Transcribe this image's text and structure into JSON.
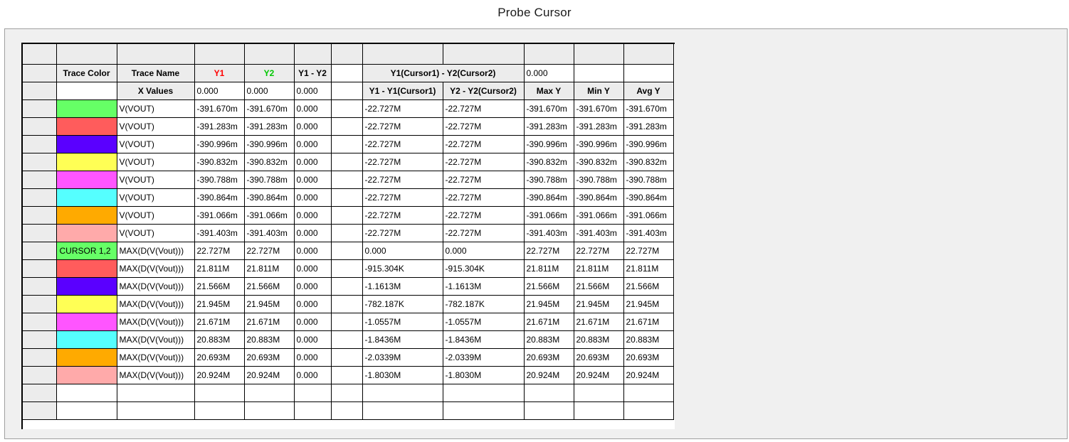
{
  "window": {
    "title": "Probe Cursor"
  },
  "header_row": {
    "trace_color": "Trace Color",
    "trace_name": "Trace Name",
    "y1": "Y1",
    "y2": "Y2",
    "y1_minus_y2": "Y1 - Y2",
    "diff_label": "Y1(Cursor1) - Y2(Cursor2)",
    "diff_value": "0.000"
  },
  "subheader_row": {
    "x_values": "X Values",
    "y1": "0.000",
    "y2": "0.000",
    "y1_minus_y2": "0.000",
    "col_y1_cursor": "Y1 - Y1(Cursor1)",
    "col_y2_cursor": "Y2 - Y2(Cursor2)",
    "max_y": "Max Y",
    "min_y": "Min Y",
    "avg_y": "Avg Y"
  },
  "colors": {
    "y1_header": "#ff0000",
    "y2_header": "#00c800",
    "cursor_cell": "#66ff66"
  },
  "rows": [
    {
      "color": "#66ff66",
      "label": "",
      "name": "V(VOUT)",
      "y1": "-391.670m",
      "y2": "-391.670m",
      "diff": "0.000",
      "y1c": "-22.727M",
      "y2c": "-22.727M",
      "max": "-391.670m",
      "min": "-391.670m",
      "avg": "-391.670m"
    },
    {
      "color": "#ff5c5c",
      "label": "",
      "name": "V(VOUT)",
      "y1": "-391.283m",
      "y2": "-391.283m",
      "diff": "0.000",
      "y1c": "-22.727M",
      "y2c": "-22.727M",
      "max": "-391.283m",
      "min": "-391.283m",
      "avg": "-391.283m"
    },
    {
      "color": "#5a00ff",
      "label": "",
      "name": "V(VOUT)",
      "y1": "-390.996m",
      "y2": "-390.996m",
      "diff": "0.000",
      "y1c": "-22.727M",
      "y2c": "-22.727M",
      "max": "-390.996m",
      "min": "-390.996m",
      "avg": "-390.996m"
    },
    {
      "color": "#ffff55",
      "label": "",
      "name": "V(VOUT)",
      "y1": "-390.832m",
      "y2": "-390.832m",
      "diff": "0.000",
      "y1c": "-22.727M",
      "y2c": "-22.727M",
      "max": "-390.832m",
      "min": "-390.832m",
      "avg": "-390.832m"
    },
    {
      "color": "#ff55ff",
      "label": "",
      "name": "V(VOUT)",
      "y1": "-390.788m",
      "y2": "-390.788m",
      "diff": "0.000",
      "y1c": "-22.727M",
      "y2c": "-22.727M",
      "max": "-390.788m",
      "min": "-390.788m",
      "avg": "-390.788m"
    },
    {
      "color": "#55ffff",
      "label": "",
      "name": "V(VOUT)",
      "y1": "-390.864m",
      "y2": "-390.864m",
      "diff": "0.000",
      "y1c": "-22.727M",
      "y2c": "-22.727M",
      "max": "-390.864m",
      "min": "-390.864m",
      "avg": "-390.864m"
    },
    {
      "color": "#ffaa00",
      "label": "",
      "name": "V(VOUT)",
      "y1": "-391.066m",
      "y2": "-391.066m",
      "diff": "0.000",
      "y1c": "-22.727M",
      "y2c": "-22.727M",
      "max": "-391.066m",
      "min": "-391.066m",
      "avg": "-391.066m"
    },
    {
      "color": "#ffaaaa",
      "label": "",
      "name": "V(VOUT)",
      "y1": "-391.403m",
      "y2": "-391.403m",
      "diff": "0.000",
      "y1c": "-22.727M",
      "y2c": "-22.727M",
      "max": "-391.403m",
      "min": "-391.403m",
      "avg": "-391.403m"
    },
    {
      "color": "#66ff66",
      "label": "CURSOR 1,2",
      "name": "MAX(D(V(Vout)))",
      "y1": "22.727M",
      "y2": "22.727M",
      "diff": "0.000",
      "y1c": "0.000",
      "y2c": "0.000",
      "max": "22.727M",
      "min": "22.727M",
      "avg": "22.727M"
    },
    {
      "color": "#ff5c5c",
      "label": "",
      "name": "MAX(D(V(Vout)))",
      "y1": "21.811M",
      "y2": "21.811M",
      "diff": "0.000",
      "y1c": "-915.304K",
      "y2c": "-915.304K",
      "max": "21.811M",
      "min": "21.811M",
      "avg": "21.811M"
    },
    {
      "color": "#5a00ff",
      "label": "",
      "name": "MAX(D(V(Vout)))",
      "y1": "21.566M",
      "y2": "21.566M",
      "diff": "0.000",
      "y1c": "-1.1613M",
      "y2c": "-1.1613M",
      "max": "21.566M",
      "min": "21.566M",
      "avg": "21.566M"
    },
    {
      "color": "#ffff55",
      "label": "",
      "name": "MAX(D(V(Vout)))",
      "y1": "21.945M",
      "y2": "21.945M",
      "diff": "0.000",
      "y1c": "-782.187K",
      "y2c": "-782.187K",
      "max": "21.945M",
      "min": "21.945M",
      "avg": "21.945M"
    },
    {
      "color": "#ff55ff",
      "label": "",
      "name": "MAX(D(V(Vout)))",
      "y1": "21.671M",
      "y2": "21.671M",
      "diff": "0.000",
      "y1c": "-1.0557M",
      "y2c": "-1.0557M",
      "max": "21.671M",
      "min": "21.671M",
      "avg": "21.671M"
    },
    {
      "color": "#55ffff",
      "label": "",
      "name": "MAX(D(V(Vout)))",
      "y1": "20.883M",
      "y2": "20.883M",
      "diff": "0.000",
      "y1c": "-1.8436M",
      "y2c": "-1.8436M",
      "max": "20.883M",
      "min": "20.883M",
      "avg": "20.883M"
    },
    {
      "color": "#ffaa00",
      "label": "",
      "name": "MAX(D(V(Vout)))",
      "y1": "20.693M",
      "y2": "20.693M",
      "diff": "0.000",
      "y1c": "-2.0339M",
      "y2c": "-2.0339M",
      "max": "20.693M",
      "min": "20.693M",
      "avg": "20.693M"
    },
    {
      "color": "#ffaaaa",
      "label": "",
      "name": "MAX(D(V(Vout)))",
      "y1": "20.924M",
      "y2": "20.924M",
      "diff": "0.000",
      "y1c": "-1.8030M",
      "y2c": "-1.8030M",
      "max": "20.924M",
      "min": "20.924M",
      "avg": "20.924M"
    }
  ]
}
